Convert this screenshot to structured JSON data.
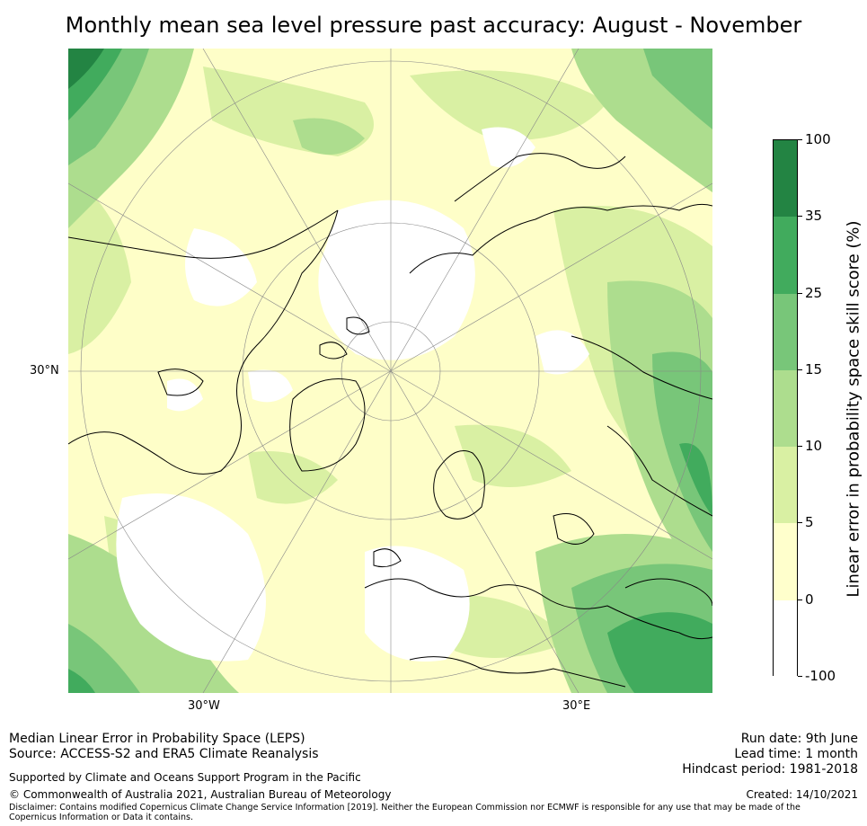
{
  "title": "Monthly mean sea level pressure past accuracy: August - November",
  "map": {
    "projection": "north polar stereographic",
    "lat_label": "30°N",
    "lon_labels": [
      "30°W",
      "30°E"
    ]
  },
  "colorbar": {
    "title": "Linear error in probability space skill score (%)",
    "ticks": [
      "100",
      "35",
      "25",
      "15",
      "10",
      "5",
      "0",
      "-100"
    ],
    "colors": [
      "#238443",
      "#41ab5d",
      "#78c679",
      "#addd8e",
      "#d9f0a3",
      "#ffffcc",
      "#ffffff"
    ]
  },
  "footer": {
    "method": "Median Linear Error in Probability Space (LEPS)",
    "source": "Source: ACCESS-S2 and ERA5 Climate Reanalysis",
    "support": "Supported by Climate and Oceans Support Program in the Pacific",
    "copyright": "© Commonwealth of Australia 2021, Australian Bureau of Meteorology",
    "disclaimer": "Disclaimer: Contains modified Copernicus Climate Change Service Information [2019]. Neither the European Commission nor ECMWF is responsible for any use that may be made of the Copernicus Information or Data it contains.",
    "run_date": "Run date: 9th June",
    "lead_time": "Lead time: 1 month",
    "hindcast": "Hindcast period: 1981-2018",
    "created": "Created: 14/10/2021"
  }
}
